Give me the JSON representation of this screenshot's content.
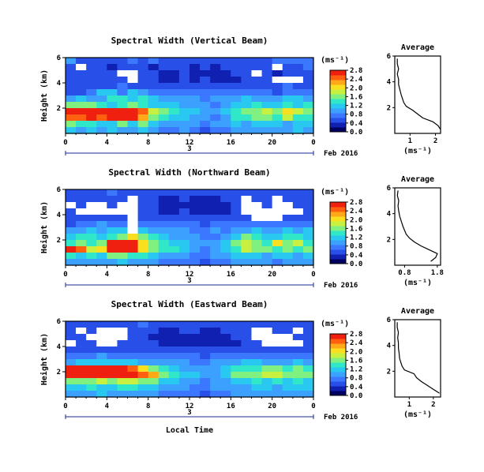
{
  "figure": {
    "shared_xlabel": "Local Time",
    "date_label": "Feb 2016",
    "day_number": "3",
    "colorbar_unit": "(ms⁻¹)",
    "avg_title": "Average",
    "avg_xlabel": "(ms⁻¹)"
  },
  "colors": {
    "colormap": [
      "#000060",
      "#1020b0",
      "#2850e8",
      "#3c78ff",
      "#3ca0ff",
      "#28c8f0",
      "#30e8c8",
      "#80f080",
      "#c8f040",
      "#f8e020",
      "#ffa818",
      "#ff6010",
      "#f02010"
    ],
    "missing": "#ffffff",
    "axis": "#000000"
  },
  "chart_data": [
    {
      "type": "heatmap",
      "title": "Spectral Width (Vertical Beam)",
      "ylabel": "Height (km)",
      "xlabel": "",
      "x_ticks": [
        "0",
        "4",
        "8",
        "12",
        "16",
        "20",
        "0"
      ],
      "y_ticks": [
        "2",
        "4",
        "6"
      ],
      "xlim": [
        0,
        24
      ],
      "ylim": [
        0,
        6
      ],
      "colorbar": {
        "label": "(ms⁻¹)",
        "ticks": [
          "0.0",
          "0.4",
          "0.8",
          "1.2",
          "1.6",
          "2.0",
          "2.4",
          "2.8"
        ],
        "range": [
          0,
          2.8
        ]
      },
      "grid": [
        [
          1.0,
          0.6,
          0.6,
          0.6,
          0.6,
          0.6,
          0.8,
          0.6,
          0.8,
          0.6,
          0.6,
          0.6,
          0.6,
          0.6,
          0.6,
          0.6,
          0.6,
          0.6,
          0.6,
          0.6,
          0.8,
          0.8,
          0.8,
          0.8
        ],
        [
          0.6,
          null,
          0.6,
          0.6,
          0.4,
          0.6,
          0.6,
          0.6,
          0.4,
          0.6,
          0.6,
          0.6,
          0.4,
          0.6,
          0.4,
          0.6,
          0.6,
          0.6,
          0.6,
          0.6,
          null,
          0.6,
          0.6,
          0.8
        ],
        [
          0.6,
          0.6,
          0.6,
          0.6,
          0.6,
          null,
          null,
          0.6,
          0.6,
          0.4,
          0.4,
          0.6,
          0.4,
          0.4,
          0.4,
          0.4,
          0.6,
          0.6,
          null,
          0.6,
          0.4,
          0.6,
          0.6,
          0.6
        ],
        [
          0.6,
          0.6,
          0.6,
          0.6,
          0.6,
          0.6,
          null,
          0.6,
          0.6,
          0.4,
          0.4,
          0.6,
          0.4,
          0.6,
          0.4,
          0.4,
          0.4,
          0.6,
          0.6,
          0.6,
          null,
          null,
          null,
          0.6
        ],
        [
          0.6,
          0.6,
          0.6,
          0.6,
          0.6,
          0.8,
          0.6,
          0.6,
          0.6,
          0.6,
          0.6,
          0.6,
          0.6,
          0.6,
          0.6,
          0.6,
          0.6,
          0.6,
          0.6,
          0.6,
          0.6,
          0.8,
          0.6,
          0.6
        ],
        [
          0.6,
          0.6,
          0.8,
          1.2,
          1.2,
          0.8,
          1.2,
          1.0,
          0.8,
          0.8,
          0.8,
          0.8,
          0.8,
          0.8,
          0.8,
          0.8,
          0.8,
          0.8,
          0.8,
          0.8,
          0.6,
          0.8,
          0.8,
          0.8
        ],
        [
          1.0,
          1.2,
          1.0,
          1.0,
          1.4,
          1.4,
          1.2,
          1.4,
          1.2,
          1.0,
          1.0,
          1.0,
          1.0,
          0.8,
          1.0,
          1.0,
          1.0,
          1.2,
          1.0,
          1.0,
          1.0,
          1.2,
          1.2,
          1.0
        ],
        [
          1.6,
          1.6,
          1.6,
          1.4,
          1.2,
          1.4,
          1.6,
          1.4,
          1.2,
          1.2,
          1.2,
          1.0,
          1.0,
          1.0,
          0.8,
          1.0,
          1.2,
          1.2,
          1.4,
          1.2,
          1.2,
          1.4,
          1.2,
          1.4
        ],
        [
          2.6,
          2.6,
          2.6,
          2.6,
          2.8,
          2.6,
          2.8,
          2.4,
          1.8,
          1.6,
          1.4,
          1.2,
          1.2,
          1.0,
          1.0,
          1.2,
          1.4,
          1.6,
          1.6,
          1.8,
          1.6,
          2.0,
          1.8,
          1.6
        ],
        [
          2.4,
          2.4,
          2.6,
          2.4,
          2.6,
          2.6,
          2.6,
          2.2,
          1.6,
          1.4,
          1.2,
          1.2,
          1.0,
          1.0,
          0.8,
          1.0,
          1.4,
          1.4,
          1.6,
          1.6,
          1.4,
          1.8,
          1.4,
          1.4
        ],
        [
          1.6,
          1.4,
          1.4,
          1.2,
          1.2,
          1.6,
          1.2,
          1.6,
          1.2,
          1.0,
          1.0,
          1.0,
          1.0,
          0.8,
          1.0,
          1.0,
          1.2,
          1.0,
          1.2,
          1.2,
          1.2,
          1.0,
          1.2,
          1.2
        ],
        [
          1.2,
          1.0,
          1.2,
          1.0,
          1.2,
          1.0,
          1.0,
          1.2,
          1.0,
          0.8,
          0.8,
          1.0,
          0.8,
          0.6,
          0.8,
          0.8,
          1.0,
          1.0,
          1.0,
          1.0,
          1.0,
          1.0,
          1.2,
          1.0
        ]
      ],
      "profile": {
        "xticks": [
          "1",
          "2"
        ],
        "xlim": [
          0.4,
          2.2
        ],
        "yticks": [
          "2",
          "4",
          "6"
        ],
        "ylim": [
          0,
          6
        ],
        "height_km": [
          0.3,
          0.6,
          0.9,
          1.2,
          1.5,
          1.8,
          2.1,
          2.4,
          2.7,
          3.0,
          3.4,
          3.8,
          4.2,
          4.6,
          5.0,
          5.4,
          5.8
        ],
        "value": [
          2.2,
          2.1,
          1.9,
          1.5,
          1.3,
          1.1,
          0.85,
          0.75,
          0.7,
          0.65,
          0.6,
          0.55,
          0.55,
          0.5,
          0.55,
          0.5,
          0.5
        ]
      }
    },
    {
      "type": "heatmap",
      "title": "Spectral Width (Northward Beam)",
      "ylabel": "Height (km)",
      "xlabel": "",
      "x_ticks": [
        "0",
        "4",
        "8",
        "12",
        "16",
        "20",
        "0"
      ],
      "y_ticks": [
        "2",
        "4",
        "6"
      ],
      "xlim": [
        0,
        24
      ],
      "ylim": [
        0,
        6
      ],
      "colorbar": {
        "label": "(ms⁻¹)",
        "ticks": [
          "0.0",
          "0.4",
          "0.8",
          "1.2",
          "1.6",
          "2.0",
          "2.4",
          "2.8"
        ],
        "range": [
          0,
          2.8
        ]
      },
      "grid": [
        [
          0.6,
          0.6,
          0.6,
          0.6,
          0.8,
          0.6,
          0.6,
          0.6,
          0.6,
          0.6,
          0.6,
          0.6,
          0.6,
          0.6,
          0.6,
          0.6,
          0.6,
          0.6,
          0.6,
          0.6,
          0.6,
          0.6,
          0.6,
          0.6
        ],
        [
          0.6,
          0.6,
          0.6,
          0.6,
          0.6,
          0.6,
          null,
          0.6,
          0.6,
          0.4,
          0.4,
          0.6,
          0.4,
          0.4,
          0.4,
          0.6,
          0.6,
          null,
          0.6,
          0.6,
          null,
          0.6,
          0.6,
          0.6
        ],
        [
          null,
          0.6,
          null,
          null,
          0.6,
          null,
          null,
          0.6,
          0.6,
          0.4,
          0.4,
          0.4,
          0.4,
          0.4,
          0.4,
          0.4,
          0.6,
          null,
          null,
          0.6,
          null,
          null,
          0.6,
          0.6
        ],
        [
          0.6,
          null,
          null,
          null,
          null,
          null,
          null,
          0.6,
          0.6,
          0.4,
          0.4,
          0.6,
          0.4,
          0.4,
          0.4,
          0.4,
          0.6,
          null,
          null,
          null,
          null,
          null,
          null,
          0.6
        ],
        [
          0.6,
          0.6,
          0.6,
          0.6,
          0.6,
          0.6,
          null,
          0.6,
          0.6,
          0.6,
          0.6,
          0.6,
          0.6,
          0.6,
          0.6,
          0.6,
          0.6,
          0.6,
          null,
          null,
          null,
          0.6,
          0.6,
          0.6
        ],
        [
          0.6,
          0.8,
          0.8,
          1.0,
          0.8,
          0.8,
          null,
          0.8,
          0.8,
          0.8,
          0.8,
          0.8,
          0.8,
          0.6,
          0.8,
          0.8,
          0.8,
          0.8,
          0.8,
          0.8,
          0.8,
          0.8,
          0.8,
          0.8
        ],
        [
          1.0,
          1.0,
          1.2,
          1.0,
          1.2,
          1.2,
          null,
          1.2,
          1.0,
          1.0,
          1.0,
          1.0,
          0.8,
          0.8,
          1.0,
          0.8,
          1.0,
          1.0,
          1.2,
          1.0,
          1.0,
          1.2,
          1.0,
          1.2
        ],
        [
          1.2,
          1.4,
          1.4,
          1.2,
          1.4,
          1.6,
          2.0,
          1.6,
          1.4,
          1.2,
          1.0,
          1.0,
          1.0,
          0.8,
          0.8,
          1.0,
          1.2,
          1.6,
          1.4,
          1.2,
          1.2,
          1.4,
          1.4,
          1.2
        ],
        [
          1.4,
          1.6,
          1.4,
          1.6,
          2.8,
          2.8,
          2.6,
          2.0,
          1.6,
          1.4,
          1.2,
          1.2,
          1.0,
          1.0,
          1.0,
          1.2,
          1.6,
          1.8,
          1.6,
          1.4,
          2.0,
          1.6,
          1.8,
          1.4
        ],
        [
          2.6,
          2.4,
          1.8,
          2.0,
          2.8,
          2.8,
          2.6,
          2.0,
          1.6,
          1.4,
          1.4,
          1.2,
          1.0,
          0.8,
          1.0,
          1.2,
          1.4,
          1.8,
          1.6,
          1.6,
          1.4,
          1.6,
          1.4,
          1.6
        ],
        [
          1.4,
          1.2,
          1.4,
          1.2,
          1.6,
          1.6,
          1.4,
          1.4,
          1.2,
          1.0,
          1.0,
          1.0,
          0.8,
          0.8,
          1.0,
          1.0,
          1.2,
          1.2,
          1.2,
          1.0,
          1.2,
          1.2,
          1.0,
          1.2
        ],
        [
          1.0,
          1.0,
          1.0,
          1.0,
          1.0,
          1.2,
          1.0,
          1.0,
          1.0,
          0.8,
          0.8,
          0.8,
          0.8,
          0.6,
          0.8,
          0.8,
          1.0,
          1.0,
          1.0,
          1.0,
          0.8,
          1.0,
          1.0,
          1.0
        ]
      ],
      "profile": {
        "xticks": [
          "0.8",
          "1.8"
        ],
        "xlim": [
          0.5,
          1.9
        ],
        "yticks": [
          "2",
          "4",
          "6"
        ],
        "ylim": [
          0,
          6
        ],
        "height_km": [
          0.3,
          0.6,
          0.9,
          1.2,
          1.5,
          1.8,
          2.1,
          2.4,
          2.7,
          3.0,
          3.4,
          3.8,
          4.2,
          4.6,
          5.0,
          5.4,
          5.8
        ],
        "value": [
          1.6,
          1.75,
          1.8,
          1.55,
          1.3,
          1.1,
          0.95,
          0.85,
          0.8,
          0.75,
          0.7,
          0.65,
          0.62,
          0.6,
          0.62,
          0.58,
          0.6
        ]
      }
    },
    {
      "type": "heatmap",
      "title": "Spectral Width (Eastward Beam)",
      "ylabel": "Height (km)",
      "xlabel": "Local Time",
      "x_ticks": [
        "0",
        "4",
        "8",
        "12",
        "16",
        "20",
        "0"
      ],
      "y_ticks": [
        "2",
        "4",
        "6"
      ],
      "xlim": [
        0,
        24
      ],
      "ylim": [
        0,
        6
      ],
      "colorbar": {
        "label": "(ms⁻¹)",
        "ticks": [
          "0.0",
          "0.4",
          "0.8",
          "1.2",
          "1.6",
          "2.0",
          "2.4",
          "2.8"
        ],
        "range": [
          0,
          2.8
        ]
      },
      "grid": [
        [
          0.6,
          0.6,
          0.6,
          0.6,
          0.6,
          0.6,
          0.6,
          0.8,
          0.6,
          0.6,
          0.6,
          0.6,
          0.6,
          0.6,
          0.6,
          0.6,
          0.6,
          0.6,
          0.6,
          0.6,
          0.6,
          0.6,
          0.6,
          0.6
        ],
        [
          0.6,
          null,
          0.6,
          null,
          null,
          null,
          0.6,
          0.6,
          0.6,
          0.4,
          0.4,
          0.6,
          0.6,
          0.4,
          0.4,
          0.6,
          0.6,
          0.6,
          null,
          null,
          0.6,
          0.6,
          null,
          0.6
        ],
        [
          0.6,
          0.6,
          null,
          null,
          null,
          null,
          0.6,
          0.6,
          0.4,
          0.4,
          0.4,
          0.4,
          0.4,
          0.4,
          0.4,
          0.4,
          0.6,
          0.6,
          null,
          null,
          null,
          null,
          0.6,
          0.6
        ],
        [
          null,
          0.6,
          0.6,
          null,
          null,
          0.6,
          0.6,
          0.6,
          0.6,
          0.4,
          0.4,
          0.4,
          0.4,
          0.4,
          0.4,
          0.4,
          0.4,
          0.6,
          0.6,
          null,
          null,
          null,
          null,
          0.6
        ],
        [
          0.6,
          0.6,
          0.6,
          0.6,
          0.6,
          0.6,
          0.6,
          0.6,
          0.6,
          0.6,
          0.6,
          0.6,
          0.6,
          0.6,
          0.6,
          0.6,
          0.6,
          0.6,
          0.6,
          0.6,
          0.6,
          0.6,
          0.6,
          0.6
        ],
        [
          0.8,
          0.8,
          0.8,
          1.0,
          0.8,
          0.8,
          0.8,
          0.8,
          0.8,
          0.8,
          0.8,
          0.8,
          0.8,
          0.6,
          0.8,
          0.8,
          0.8,
          0.8,
          0.8,
          0.8,
          0.8,
          0.8,
          0.8,
          0.8
        ],
        [
          1.0,
          1.2,
          1.2,
          1.2,
          1.2,
          1.2,
          1.2,
          1.0,
          1.0,
          1.0,
          1.0,
          1.0,
          0.8,
          0.8,
          1.0,
          1.0,
          1.0,
          1.2,
          1.2,
          1.0,
          1.0,
          1.0,
          1.2,
          1.0
        ],
        [
          2.6,
          2.6,
          2.6,
          2.6,
          2.6,
          2.6,
          2.4,
          2.0,
          1.6,
          1.4,
          1.2,
          1.0,
          1.0,
          1.0,
          1.0,
          1.2,
          1.4,
          1.4,
          1.4,
          1.6,
          1.6,
          1.4,
          1.6,
          1.4
        ],
        [
          2.6,
          2.8,
          2.8,
          2.8,
          2.8,
          2.8,
          2.8,
          2.4,
          2.2,
          1.6,
          1.4,
          1.2,
          1.2,
          1.0,
          1.0,
          1.2,
          1.6,
          1.6,
          1.6,
          1.8,
          1.8,
          1.6,
          1.6,
          1.6
        ],
        [
          1.6,
          1.6,
          1.6,
          1.8,
          1.6,
          1.8,
          1.8,
          1.6,
          1.6,
          1.2,
          1.2,
          1.0,
          1.0,
          0.8,
          1.0,
          1.0,
          1.2,
          1.2,
          1.4,
          1.2,
          1.4,
          1.2,
          1.4,
          1.2
        ],
        [
          1.2,
          1.2,
          1.4,
          1.2,
          1.2,
          1.4,
          1.4,
          1.2,
          1.2,
          1.0,
          1.0,
          1.0,
          0.8,
          0.8,
          1.0,
          1.0,
          1.0,
          1.0,
          1.2,
          1.2,
          1.0,
          1.2,
          1.2,
          1.2
        ],
        [
          1.0,
          1.0,
          1.0,
          1.2,
          1.0,
          1.0,
          1.0,
          1.0,
          1.0,
          0.8,
          0.8,
          0.8,
          0.8,
          0.6,
          0.8,
          0.8,
          1.0,
          1.0,
          1.0,
          1.0,
          1.0,
          1.0,
          1.0,
          1.0
        ]
      ],
      "profile": {
        "xticks": [
          "1",
          "2"
        ],
        "xlim": [
          0.4,
          2.3
        ],
        "yticks": [
          "2",
          "4",
          "6"
        ],
        "ylim": [
          0,
          6
        ],
        "height_km": [
          0.3,
          0.6,
          0.9,
          1.2,
          1.5,
          1.8,
          2.1,
          2.4,
          2.7,
          3.0,
          3.4,
          3.8,
          4.2,
          4.6,
          5.0,
          5.4,
          5.8
        ],
        "value": [
          2.25,
          2.0,
          1.75,
          1.5,
          1.3,
          1.2,
          0.8,
          0.7,
          0.65,
          0.6,
          0.58,
          0.55,
          0.55,
          0.52,
          0.55,
          0.5,
          0.5
        ]
      }
    }
  ]
}
